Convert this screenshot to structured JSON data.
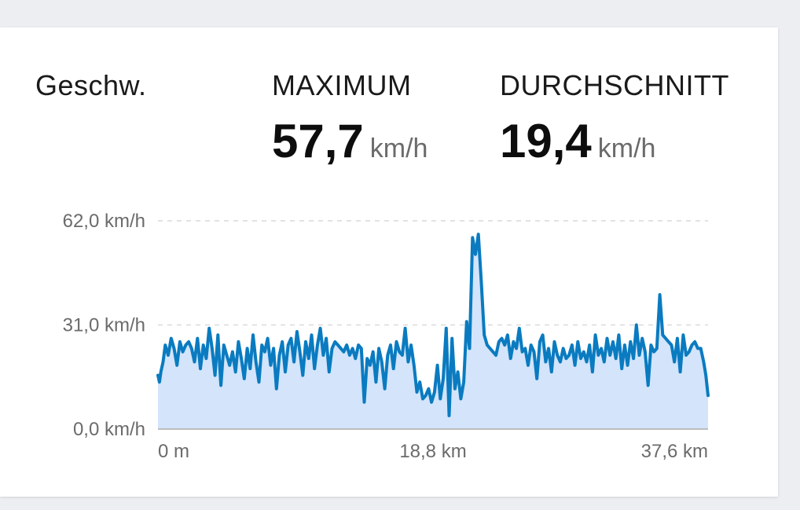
{
  "card": {
    "title": "Geschw.",
    "stats": [
      {
        "label": "MAXIMUM",
        "value": "57,7",
        "unit": "km/h"
      },
      {
        "label": "DURCHSCHNITT",
        "value": "19,4",
        "unit": "km/h"
      }
    ]
  },
  "chart_data": {
    "type": "area",
    "xlim": [
      0,
      37.6
    ],
    "ylim": [
      0,
      62
    ],
    "y_ticks": [
      {
        "value": 62,
        "label": "62,0 km/h"
      },
      {
        "value": 31,
        "label": "31,0 km/h"
      },
      {
        "value": 0,
        "label": "0,0 km/h"
      }
    ],
    "x_ticks": [
      {
        "value": 0,
        "label": "0 m"
      },
      {
        "value": 18.8,
        "label": "18,8 km"
      },
      {
        "value": 37.6,
        "label": "37,6 km"
      }
    ],
    "grid": true,
    "colors": {
      "line": "#0a7bc0",
      "fill": "#d3e4fb",
      "grid": "#d9d9d9",
      "axis": "#bdbdbd"
    },
    "series": [
      {
        "x": [
          0.0,
          0.1,
          0.2,
          0.35,
          0.5,
          0.7,
          0.9,
          1.1,
          1.3,
          1.5,
          1.7,
          1.9,
          2.1,
          2.3,
          2.5,
          2.7,
          2.9,
          3.1,
          3.3,
          3.5,
          3.7,
          3.9,
          4.1,
          4.3,
          4.5,
          4.7,
          4.9,
          5.1,
          5.3,
          5.5,
          5.7,
          5.9,
          6.1,
          6.3,
          6.5,
          6.7,
          6.9,
          7.1,
          7.3,
          7.5,
          7.7,
          7.9,
          8.1,
          8.3,
          8.5,
          8.7,
          8.9,
          9.1,
          9.3,
          9.5,
          9.7,
          9.9,
          10.1,
          10.3,
          10.5,
          10.7,
          10.9,
          11.1,
          11.3,
          11.5,
          11.7,
          11.9,
          12.1,
          12.3,
          12.5,
          12.7,
          12.9,
          13.1,
          13.3,
          13.5,
          13.7,
          13.9,
          14.1,
          14.3,
          14.5,
          14.7,
          14.9,
          15.1,
          15.3,
          15.5,
          15.7,
          15.9,
          16.1,
          16.3,
          16.5,
          16.7,
          16.9,
          17.1,
          17.3,
          17.5,
          17.7,
          17.9,
          18.1,
          18.3,
          18.5,
          18.7,
          18.9,
          19.1,
          19.3,
          19.5,
          19.7,
          19.9,
          20.1,
          20.3,
          20.5,
          20.7,
          20.9,
          21.1,
          21.3,
          21.5,
          21.7,
          21.9,
          22.1,
          22.3,
          22.5,
          22.7,
          22.9,
          23.1,
          23.3,
          23.5,
          23.7,
          23.9,
          24.1,
          24.3,
          24.5,
          24.7,
          24.9,
          25.1,
          25.3,
          25.5,
          25.7,
          25.9,
          26.1,
          26.3,
          26.5,
          26.7,
          26.9,
          27.1,
          27.3,
          27.5,
          27.7,
          27.9,
          28.1,
          28.3,
          28.5,
          28.7,
          28.9,
          29.1,
          29.3,
          29.5,
          29.7,
          29.9,
          30.1,
          30.3,
          30.5,
          30.7,
          30.9,
          31.1,
          31.3,
          31.5,
          31.7,
          31.9,
          32.1,
          32.3,
          32.5,
          32.7,
          32.9,
          33.1,
          33.3,
          33.5,
          33.7,
          33.9,
          34.1,
          34.3,
          34.5,
          34.7,
          34.9,
          35.1,
          35.3,
          35.5,
          35.7,
          35.9,
          36.1,
          36.3,
          36.5,
          36.7,
          36.9,
          37.1,
          37.3,
          37.45,
          37.6
        ],
        "y": [
          16,
          14,
          17,
          20,
          25,
          22,
          27,
          24,
          19,
          26,
          23,
          25,
          26,
          24,
          20,
          27,
          18,
          25,
          21,
          30,
          24,
          16,
          28,
          13,
          25,
          22,
          19,
          23,
          17,
          26,
          21,
          15,
          24,
          18,
          28,
          20,
          14,
          25,
          23,
          27,
          19,
          24,
          12,
          22,
          26,
          17,
          25,
          27,
          20,
          29,
          23,
          16,
          26,
          21,
          28,
          18,
          25,
          30,
          22,
          27,
          17,
          24,
          26,
          25,
          24,
          23,
          25,
          22,
          24,
          21,
          25,
          24,
          8,
          21,
          19,
          23,
          14,
          24,
          20,
          12,
          22,
          25,
          18,
          26,
          23,
          22,
          30,
          20,
          25,
          19,
          11,
          14,
          9,
          10,
          12,
          8,
          11,
          19,
          9,
          15,
          30,
          4,
          27,
          12,
          17,
          9,
          14,
          32,
          24,
          57,
          52,
          58,
          44,
          28,
          25,
          24,
          23,
          22,
          26,
          27,
          25,
          28,
          21,
          26,
          24,
          30,
          23,
          24,
          19,
          25,
          23,
          15,
          26,
          28,
          20,
          24,
          17,
          26,
          22,
          20,
          24,
          21,
          22,
          25,
          19,
          26,
          21,
          23,
          20,
          25,
          17,
          28,
          22,
          24,
          20,
          27,
          22,
          26,
          21,
          28,
          18,
          25,
          19,
          26,
          21,
          31,
          22,
          27,
          23,
          13,
          25,
          23,
          24,
          40,
          28,
          27,
          26,
          25,
          20,
          27,
          17,
          28,
          22,
          23,
          25,
          26,
          24,
          24,
          20,
          16,
          10
        ]
      }
    ]
  }
}
